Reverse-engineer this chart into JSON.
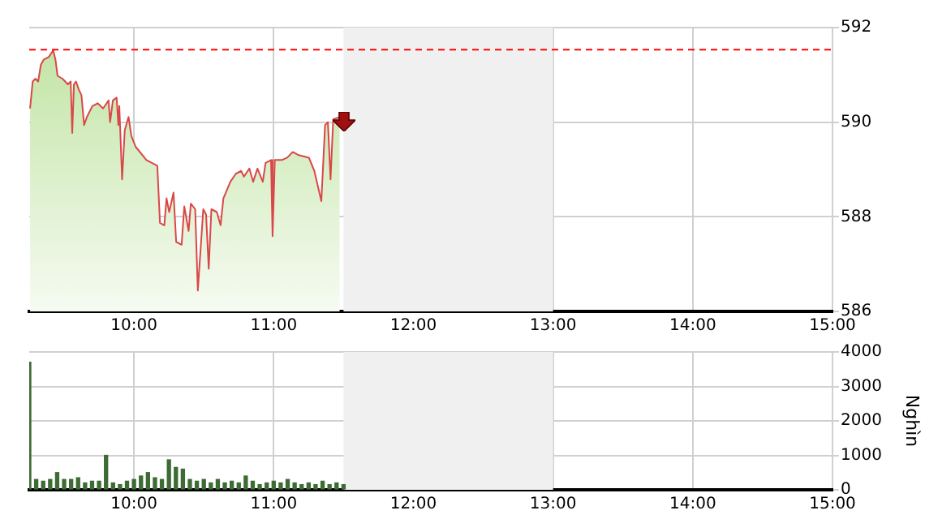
{
  "chart_data": [
    {
      "type": "area",
      "color": "#d94848",
      "x": [
        9.256,
        9.275,
        9.295,
        9.314,
        9.333,
        9.353,
        9.391,
        9.422,
        9.438,
        9.453,
        9.488,
        9.527,
        9.547,
        9.558,
        9.57,
        9.585,
        9.605,
        9.624,
        9.643,
        9.663,
        9.702,
        9.74,
        9.779,
        9.818,
        9.829,
        9.849,
        9.876,
        9.888,
        9.895,
        9.915,
        9.934,
        9.961,
        9.981,
        10.012,
        10.089,
        10.167,
        10.186,
        10.217,
        10.233,
        10.252,
        10.283,
        10.302,
        10.341,
        10.36,
        10.391,
        10.407,
        10.438,
        10.457,
        10.496,
        10.516,
        10.535,
        10.554,
        10.593,
        10.62,
        10.64,
        10.69,
        10.729,
        10.767,
        10.787,
        10.826,
        10.853,
        10.884,
        10.922,
        10.942,
        10.981,
        10.992,
        11.008,
        11.058,
        11.097,
        11.136,
        11.174,
        11.252,
        11.291,
        11.341,
        11.368,
        11.388,
        11.407,
        11.426,
        11.473
      ],
      "values": [
        590.29,
        590.86,
        590.92,
        590.86,
        591.21,
        591.32,
        591.38,
        591.52,
        591.32,
        590.98,
        590.92,
        590.8,
        590.86,
        589.77,
        590.8,
        590.86,
        590.69,
        590.57,
        589.94,
        590.11,
        590.34,
        590.4,
        590.29,
        590.46,
        590.0,
        590.46,
        590.52,
        589.94,
        590.34,
        588.79,
        589.83,
        590.11,
        589.71,
        589.48,
        589.2,
        589.08,
        587.87,
        587.82,
        588.39,
        588.1,
        588.51,
        587.47,
        587.41,
        588.22,
        587.7,
        588.28,
        588.16,
        586.44,
        588.16,
        588.05,
        586.9,
        588.16,
        588.1,
        587.82,
        588.39,
        588.74,
        588.91,
        588.97,
        588.85,
        589.02,
        588.74,
        589.02,
        588.74,
        589.14,
        589.2,
        587.59,
        589.2,
        589.2,
        589.25,
        589.37,
        589.31,
        589.25,
        588.97,
        588.33,
        589.94,
        590.0,
        588.79,
        590.06,
        590.11
      ],
      "xlim": [
        9.25,
        15
      ],
      "xticks": [
        {
          "value": 10,
          "label": "10:00"
        },
        {
          "value": 11,
          "label": "11:00"
        },
        {
          "value": 12,
          "label": "12:00"
        },
        {
          "value": 13,
          "label": "13:00"
        },
        {
          "value": 14,
          "label": "14:00"
        },
        {
          "value": 15,
          "label": "15:00"
        }
      ],
      "ylim": [
        586,
        592
      ],
      "yticks": [
        586,
        588,
        590,
        592
      ],
      "ref_lines": [
        {
          "axis": "y",
          "value": 591.55,
          "color": "#ff0000",
          "line_style": "dashed"
        }
      ],
      "bands": [
        {
          "axis": "x",
          "from": 11.5,
          "to": 13,
          "color": "#f0f0f0"
        }
      ],
      "grid": true,
      "legend": false,
      "marker": "none"
    },
    {
      "type": "bar",
      "color": "#3d6b34",
      "ylabel": "Nghìn",
      "x": [
        9.25,
        9.3,
        9.35,
        9.4,
        9.45,
        9.5,
        9.55,
        9.6,
        9.65,
        9.7,
        9.75,
        9.8,
        9.85,
        9.9,
        9.95,
        10.0,
        10.05,
        10.1,
        10.15,
        10.2,
        10.25,
        10.3,
        10.35,
        10.4,
        10.45,
        10.5,
        10.55,
        10.6,
        10.65,
        10.7,
        10.75,
        10.8,
        10.85,
        10.9,
        10.95,
        11.0,
        11.05,
        11.1,
        11.15,
        11.2,
        11.25,
        11.3,
        11.35,
        11.4,
        11.45,
        11.5
      ],
      "values": [
        3700,
        300,
        250,
        300,
        500,
        300,
        300,
        350,
        200,
        250,
        250,
        1000,
        200,
        150,
        250,
        300,
        400,
        500,
        350,
        300,
        870,
        650,
        600,
        300,
        250,
        300,
        200,
        300,
        200,
        250,
        200,
        400,
        250,
        150,
        200,
        250,
        200,
        300,
        200,
        150,
        200,
        150,
        250,
        150,
        200,
        150
      ],
      "xlim": [
        9.25,
        15
      ],
      "xticks": [
        {
          "value": 10,
          "label": "10:00"
        },
        {
          "value": 11,
          "label": "11:00"
        },
        {
          "value": 12,
          "label": "12:00"
        },
        {
          "value": 13,
          "label": "13:00"
        },
        {
          "value": 14,
          "label": "14:00"
        },
        {
          "value": 15,
          "label": "15:00"
        }
      ],
      "ylim": [
        0,
        4000
      ],
      "yticks": [
        0,
        1000,
        2000,
        3000,
        4000
      ],
      "bands": [
        {
          "axis": "x",
          "from": 11.5,
          "to": 13,
          "color": "#f0f0f0"
        }
      ],
      "grid": true,
      "legend": false
    }
  ]
}
